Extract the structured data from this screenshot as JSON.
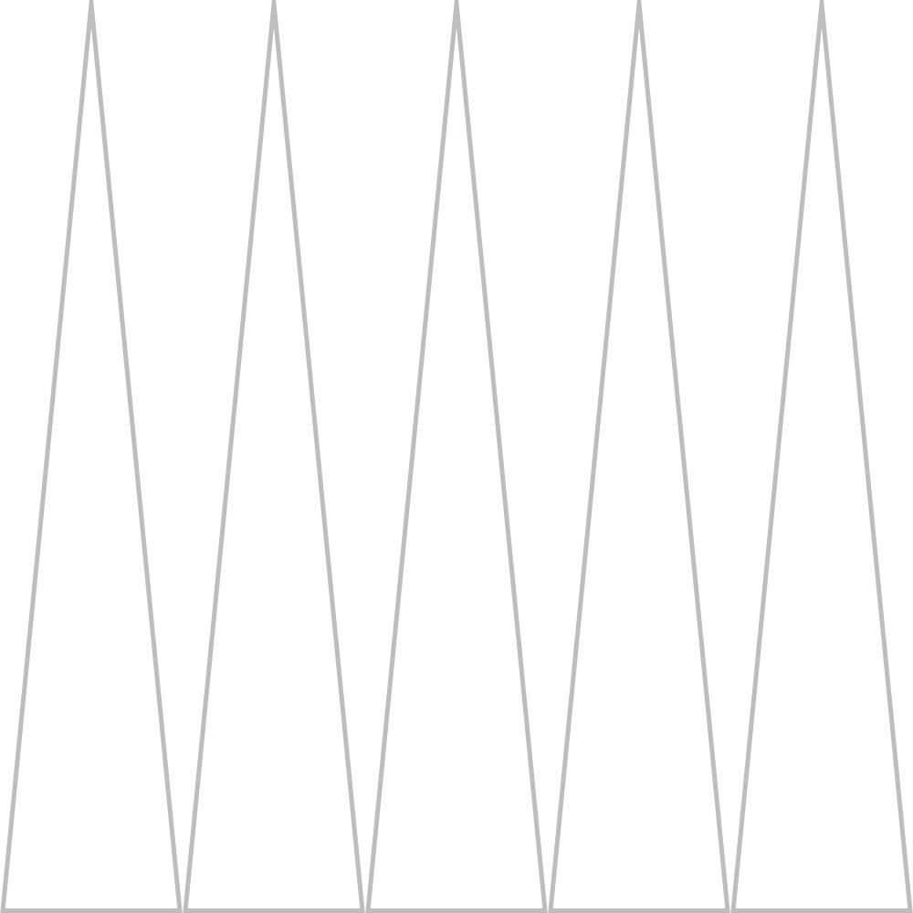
{
  "shapes": {
    "kind": "triangle",
    "count": 5,
    "fill": "none",
    "stroke_color": "#bdbdbd"
  },
  "background_color": "#ffffff"
}
